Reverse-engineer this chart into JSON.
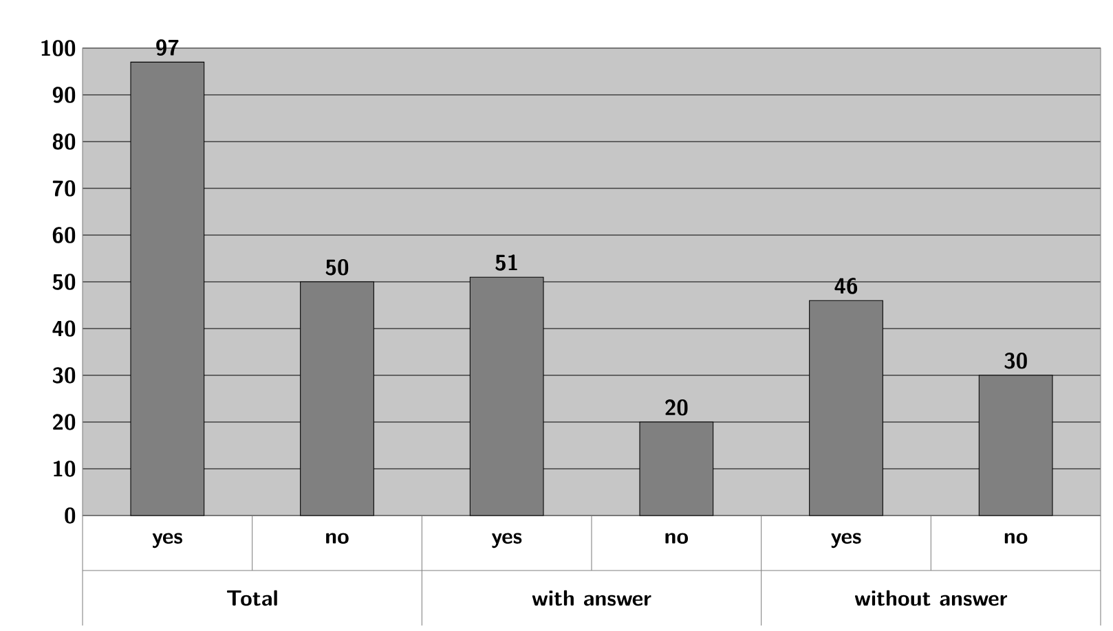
{
  "chart_data": {
    "type": "bar",
    "categories": [
      "yes",
      "no",
      "yes",
      "no",
      "yes",
      "no"
    ],
    "values": [
      97,
      50,
      51,
      20,
      46,
      30
    ],
    "color": "#808080",
    "ylim": [
      0,
      100
    ],
    "yticks": [
      0,
      10,
      20,
      30,
      40,
      50,
      60,
      70,
      80,
      90,
      100
    ],
    "grid": "y",
    "data_labels": true,
    "annotations": [
      "Total",
      "with answer",
      "without answer"
    ]
  }
}
